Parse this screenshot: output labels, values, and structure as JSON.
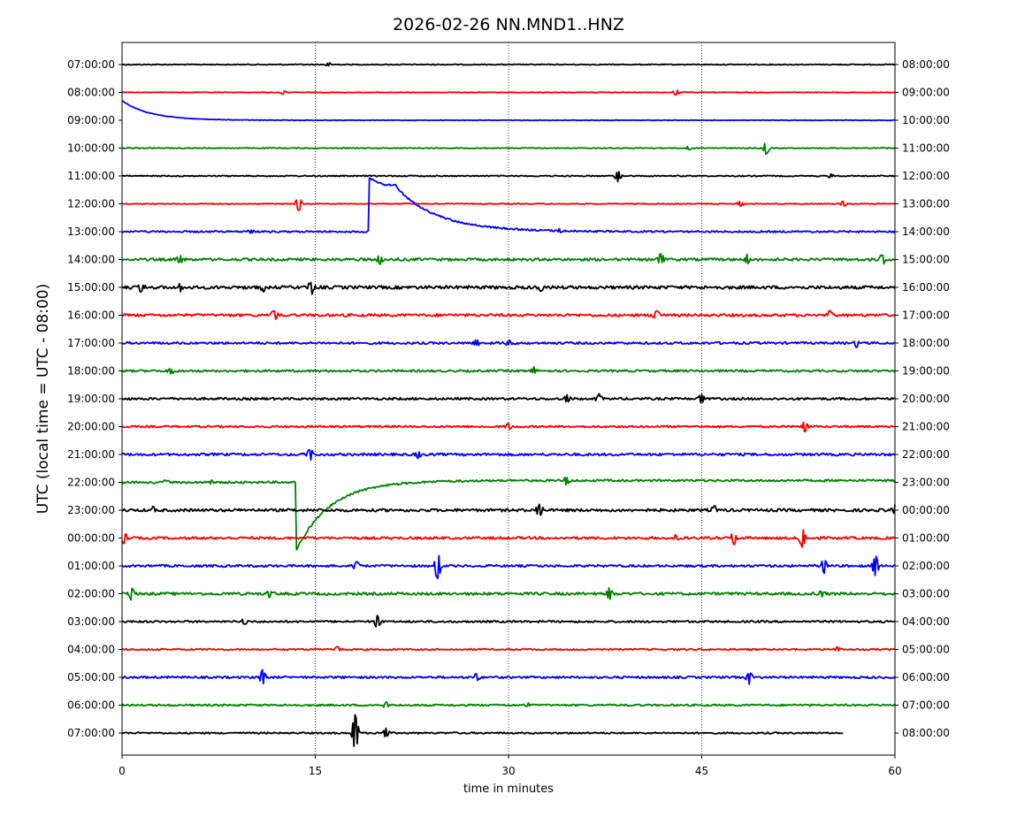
{
  "chart_data": {
    "type": "line",
    "title": "2026-02-26 NN.MND1..HNZ",
    "xlabel": "time in minutes",
    "ylabel": "UTC (local time = UTC - 08:00)",
    "xlim": [
      0,
      60
    ],
    "x_ticks": [
      0,
      15,
      30,
      45,
      60
    ],
    "x_tick_labels": [
      "0",
      "15",
      "30",
      "45",
      "60"
    ],
    "grid": "vertical dotted lines at 15, 30, 45",
    "colors": [
      "#000000",
      "#ff0000",
      "#0000ff",
      "#008000"
    ],
    "left_tick_labels": [
      "07:00:00",
      "08:00:00",
      "09:00:00",
      "10:00:00",
      "11:00:00",
      "12:00:00",
      "13:00:00",
      "14:00:00",
      "15:00:00",
      "16:00:00",
      "17:00:00",
      "18:00:00",
      "19:00:00",
      "20:00:00",
      "21:00:00",
      "22:00:00",
      "23:00:00",
      "00:00:00",
      "01:00:00",
      "02:00:00",
      "03:00:00",
      "04:00:00",
      "05:00:00",
      "06:00:00",
      "07:00:00"
    ],
    "right_tick_labels": [
      "08:00:00",
      "09:00:00",
      "10:00:00",
      "11:00:00",
      "12:00:00",
      "13:00:00",
      "14:00:00",
      "15:00:00",
      "16:00:00",
      "17:00:00",
      "18:00:00",
      "19:00:00",
      "20:00:00",
      "21:00:00",
      "22:00:00",
      "23:00:00",
      "00:00:00",
      "01:00:00",
      "02:00:00",
      "03:00:00",
      "04:00:00",
      "05:00:00",
      "06:00:00",
      "07:00:00",
      "08:00:00"
    ],
    "series": [
      {
        "noise": 0.5,
        "end": 60,
        "events": [
          [
            16,
            2
          ]
        ]
      },
      {
        "noise": 0.4,
        "end": 60,
        "events": [
          [
            12.5,
            2
          ],
          [
            43,
            3
          ]
        ]
      },
      {
        "noise": 0.3,
        "end": 60,
        "events": []
      },
      {
        "noise": 0.5,
        "end": 60,
        "events": [
          [
            44,
            2
          ],
          [
            50,
            7
          ]
        ]
      },
      {
        "noise": 0.7,
        "end": 60,
        "events": [
          [
            38.5,
            6
          ],
          [
            55,
            2
          ]
        ]
      },
      {
        "noise": 0.5,
        "end": 60,
        "events": [
          [
            13.7,
            8
          ],
          [
            48,
            3
          ],
          [
            56,
            3
          ]
        ]
      },
      {
        "noise": 1.0,
        "end": 60,
        "events": [
          [
            10,
            2
          ],
          [
            34,
            2
          ]
        ]
      },
      {
        "noise": 1.5,
        "end": 60,
        "events": [
          [
            4.5,
            4
          ],
          [
            20,
            5
          ],
          [
            41.8,
            7
          ],
          [
            48.5,
            5
          ],
          [
            59,
            6
          ]
        ]
      },
      {
        "noise": 1.8,
        "end": 60,
        "events": [
          [
            1.5,
            4
          ],
          [
            4.5,
            4
          ],
          [
            11,
            4
          ],
          [
            14.7,
            8
          ],
          [
            32.5,
            4
          ]
        ]
      },
      {
        "noise": 1.5,
        "end": 60,
        "events": [
          [
            11.8,
            5
          ],
          [
            41.5,
            5
          ],
          [
            55,
            5
          ]
        ]
      },
      {
        "noise": 1.3,
        "end": 60,
        "events": [
          [
            27.5,
            3
          ],
          [
            30,
            3
          ],
          [
            57,
            4
          ]
        ]
      },
      {
        "noise": 1.2,
        "end": 60,
        "events": [
          [
            3.8,
            3
          ],
          [
            32,
            4
          ]
        ]
      },
      {
        "noise": 1.3,
        "end": 60,
        "events": [
          [
            34.5,
            5
          ],
          [
            37,
            5
          ],
          [
            45,
            5
          ]
        ]
      },
      {
        "noise": 1.1,
        "end": 60,
        "events": [
          [
            30,
            3
          ],
          [
            53,
            6
          ]
        ]
      },
      {
        "noise": 1.4,
        "end": 60,
        "events": [
          [
            14.6,
            7
          ],
          [
            23,
            4
          ]
        ]
      },
      {
        "noise": 1.2,
        "end": 60,
        "events": [
          [
            3.5,
            3
          ],
          [
            7,
            3
          ],
          [
            34.5,
            5
          ]
        ]
      },
      {
        "noise": 1.6,
        "end": 60,
        "events": [
          [
            2.5,
            4
          ],
          [
            32.4,
            7
          ],
          [
            46,
            4
          ],
          [
            60,
            5
          ]
        ]
      },
      {
        "noise": 1.4,
        "end": 60,
        "events": [
          [
            0.2,
            6
          ],
          [
            43,
            4
          ],
          [
            47.5,
            7
          ],
          [
            52.8,
            11
          ]
        ]
      },
      {
        "noise": 1.3,
        "end": 60,
        "events": [
          [
            18.2,
            5
          ],
          [
            24.5,
            16
          ],
          [
            54.5,
            8
          ],
          [
            58.5,
            11
          ]
        ]
      },
      {
        "noise": 1.5,
        "end": 60,
        "events": [
          [
            0.7,
            7
          ],
          [
            11.5,
            4
          ],
          [
            37.8,
            8
          ],
          [
            54.3,
            4
          ]
        ]
      },
      {
        "noise": 1.1,
        "end": 60,
        "events": [
          [
            9.5,
            3
          ],
          [
            19.8,
            7
          ]
        ]
      },
      {
        "noise": 0.9,
        "end": 60,
        "events": [
          [
            16.7,
            3
          ],
          [
            55.5,
            3
          ]
        ]
      },
      {
        "noise": 1.2,
        "end": 60,
        "events": [
          [
            10.9,
            8
          ],
          [
            27.5,
            4
          ],
          [
            48.7,
            7
          ]
        ]
      },
      {
        "noise": 1.0,
        "end": 60,
        "events": [
          [
            20.5,
            3
          ],
          [
            31.5,
            2
          ]
        ]
      },
      {
        "noise": 0.9,
        "end": 56,
        "events": [
          [
            18.1,
            22
          ],
          [
            20.5,
            5
          ]
        ]
      }
    ]
  }
}
